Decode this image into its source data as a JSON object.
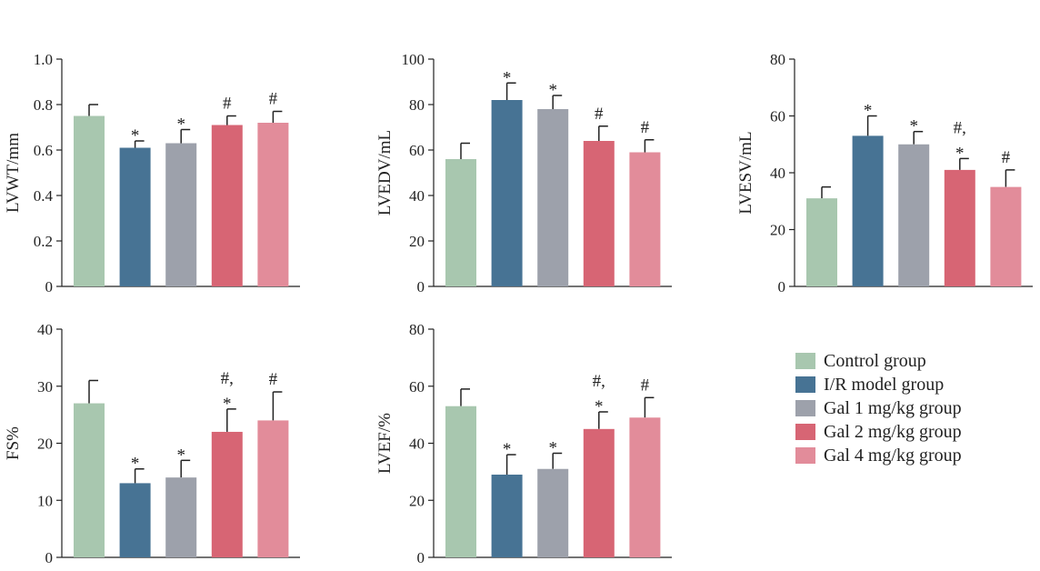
{
  "legend": {
    "items": [
      {
        "label": "Control group",
        "color": "#a8c7af"
      },
      {
        "label": "I/R model group",
        "color": "#477394"
      },
      {
        "label": "Gal 1 mg/kg group",
        "color": "#9da1ab"
      },
      {
        "label": "Gal 2 mg/kg group",
        "color": "#d76574"
      },
      {
        "label": "Gal 4 mg/kg group",
        "color": "#e28c9a"
      }
    ]
  },
  "chart_data": [
    {
      "type": "bar",
      "ylabel": "LVWT/mm",
      "ylim": [
        0,
        1.0
      ],
      "yticks": [
        "0",
        "0.2",
        "0.4",
        "0.6",
        "0.8",
        "1.0"
      ],
      "values": [
        0.75,
        0.61,
        0.63,
        0.71,
        0.72
      ],
      "errors": [
        0.05,
        0.03,
        0.06,
        0.04,
        0.05
      ],
      "annotations": [
        [],
        [
          "*"
        ],
        [
          "*"
        ],
        [
          "#"
        ],
        [
          "#"
        ]
      ]
    },
    {
      "type": "bar",
      "ylabel": "LVEDV/mL",
      "ylim": [
        0,
        100
      ],
      "yticks": [
        "0",
        "20",
        "40",
        "60",
        "80",
        "100"
      ],
      "values": [
        56,
        82,
        78,
        64,
        59
      ],
      "errors": [
        7,
        7.5,
        6,
        6.5,
        5.5
      ],
      "annotations": [
        [],
        [
          "*"
        ],
        [
          "*"
        ],
        [
          "#"
        ],
        [
          "#"
        ]
      ]
    },
    {
      "type": "bar",
      "ylabel": "LVESV/mL",
      "ylim": [
        0,
        80
      ],
      "yticks": [
        "0",
        "20",
        "40",
        "60",
        "80"
      ],
      "values": [
        31,
        53,
        50,
        41,
        35
      ],
      "errors": [
        4,
        7,
        4.5,
        4,
        6
      ],
      "annotations": [
        [],
        [
          "*"
        ],
        [
          "*"
        ],
        [
          "#,",
          "*"
        ],
        [
          "#"
        ]
      ]
    },
    {
      "type": "bar",
      "ylabel": "FS%",
      "ylim": [
        0,
        40
      ],
      "yticks": [
        "0",
        "10",
        "20",
        "30",
        "40"
      ],
      "values": [
        27,
        13,
        14,
        22,
        24
      ],
      "errors": [
        4,
        2.5,
        3,
        4,
        5
      ],
      "annotations": [
        [],
        [
          "*"
        ],
        [
          "*"
        ],
        [
          "#,",
          "*"
        ],
        [
          "#"
        ]
      ]
    },
    {
      "type": "bar",
      "ylabel": "LVEF/%",
      "ylim": [
        0,
        80
      ],
      "yticks": [
        "0",
        "20",
        "40",
        "60",
        "80"
      ],
      "values": [
        53,
        29,
        31,
        45,
        49
      ],
      "errors": [
        6,
        7,
        5.5,
        6,
        7
      ],
      "annotations": [
        [],
        [
          "*"
        ],
        [
          "*"
        ],
        [
          "#,",
          "*"
        ],
        [
          "#"
        ]
      ]
    }
  ]
}
